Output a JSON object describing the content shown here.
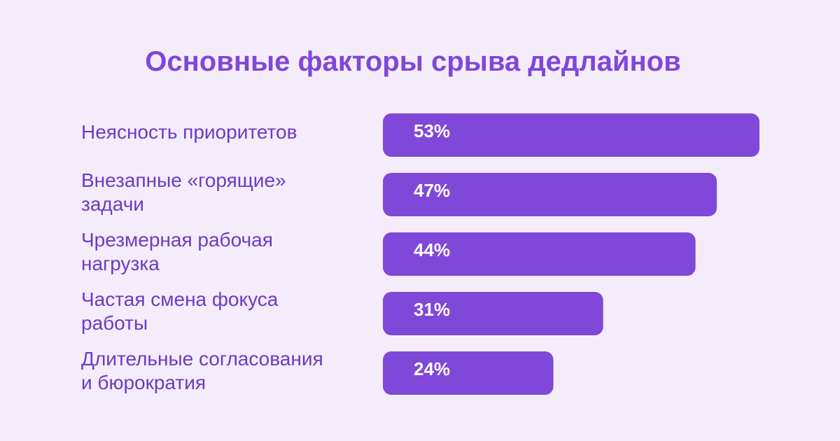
{
  "colors": {
    "background": "#f5ecfb",
    "bar": "#8048d8",
    "title": "#7f47d9",
    "label": "#6b3cc4",
    "value_text": "#ffffff"
  },
  "chart_data": {
    "type": "bar",
    "orientation": "horizontal",
    "title": "Основные факторы срыва дедлайнов",
    "categories": [
      [
        "Неясность приоритетов"
      ],
      [
        "Внезапные «горящие»",
        "задачи"
      ],
      [
        "Чрезмерная рабочая",
        "нагрузка"
      ],
      [
        "Частая смена фокуса",
        "работы"
      ],
      [
        "Длительные согласования",
        "и бюрократия"
      ]
    ],
    "values": [
      53,
      47,
      44,
      31,
      24
    ],
    "value_labels": [
      "53%",
      "47%",
      "44%",
      "31%",
      "24%"
    ],
    "unit": "%",
    "grid": false,
    "legend": "none"
  }
}
